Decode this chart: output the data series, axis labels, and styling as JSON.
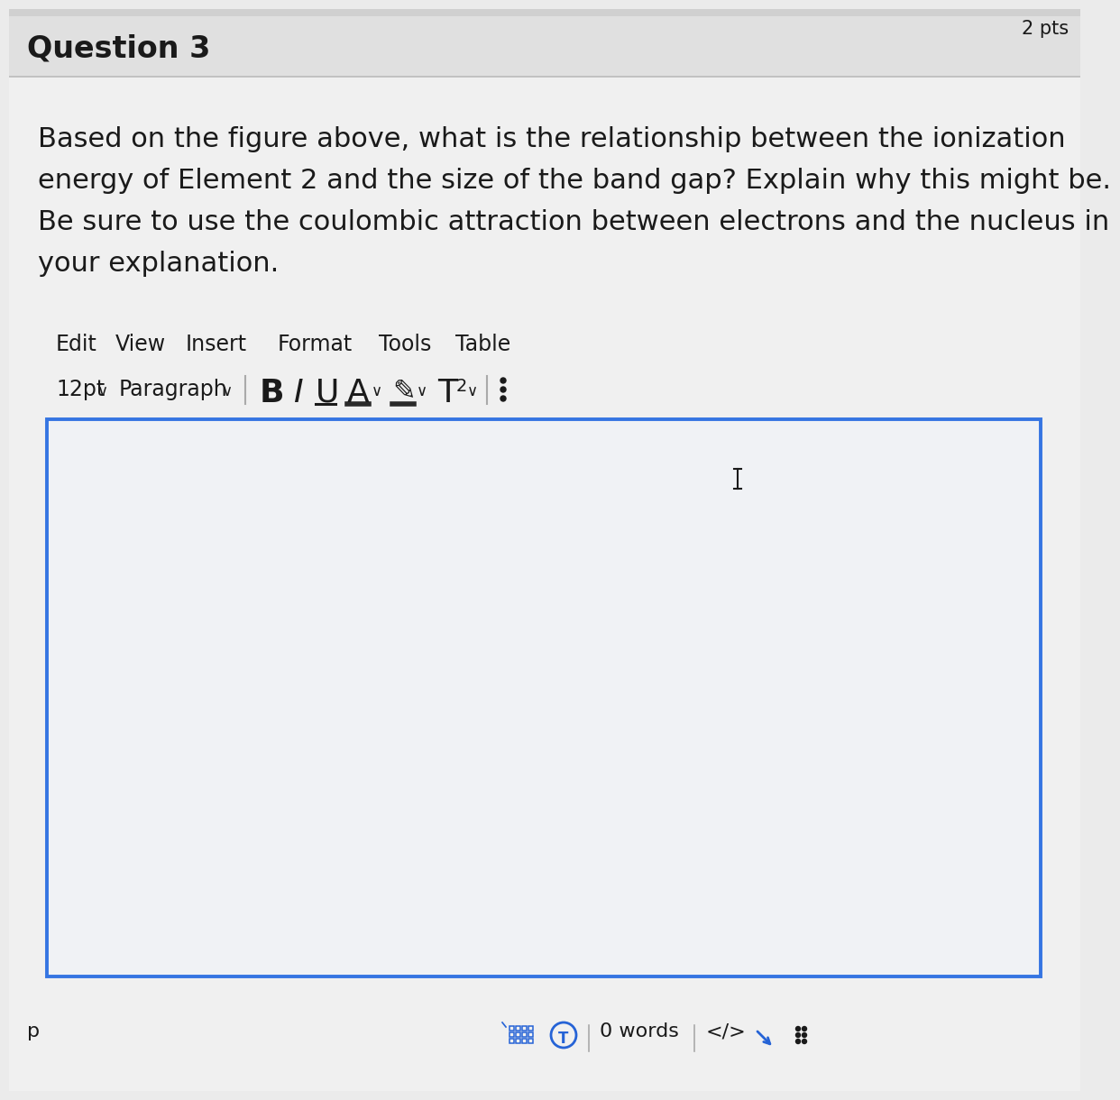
{
  "page_bg": "#ebebeb",
  "header_bg": "#e0e0e0",
  "content_bg": "#f0f0f0",
  "textbox_bg": "#f0f2f5",
  "header_text": "Question 3",
  "header_pts": "2 pts",
  "question_text_lines": [
    "Based on the figure above, what is the relationship between the ionization",
    "energy of Element 2 and the size of the band gap? Explain why this might be.",
    "Be sure to use the coulombic attraction between electrons and the nucleus in",
    "your explanation."
  ],
  "menu_items": [
    "Edit",
    "View",
    "Insert",
    "Format",
    "Tools",
    "Table"
  ],
  "word_count": "0 words",
  "bottom_label": "p",
  "text_color": "#1a1a1a",
  "medium_gray": "#555555",
  "blue_border": "#3575e2",
  "blue_icon": "#2563d6",
  "sep_color": "#aaaaaa",
  "header_line_color": "#bbbbbb",
  "font_size_question": 22,
  "font_size_header": 24,
  "font_size_menu": 17,
  "font_size_toolbar_label": 17,
  "font_size_toolbar_btn": 22,
  "font_size_bottom": 16
}
